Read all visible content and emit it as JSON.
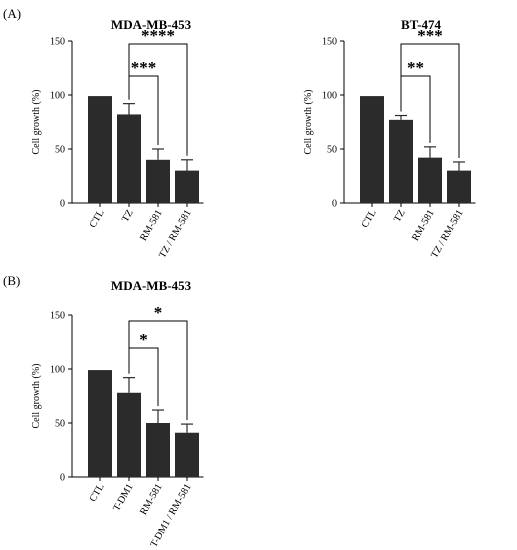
{
  "panels": [
    {
      "letter": "(A)"
    },
    {
      "letter": "(B)"
    }
  ],
  "chart_data": [
    {
      "type": "bar",
      "title": "MDA-MB-453",
      "ylabel": "Cell growth (%)",
      "xlabel": "",
      "ylim": [
        0,
        150
      ],
      "yticks": [
        "0",
        "50",
        "100",
        "150"
      ],
      "categories": [
        "CTL",
        "TZ",
        "RM-581",
        "TZ / RM-581"
      ],
      "values": [
        99,
        82,
        40,
        30
      ],
      "errors": [
        0,
        10,
        10,
        10
      ],
      "bar_color": "#2b2b2b",
      "significance": [
        {
          "from": "TZ",
          "to": "RM-581",
          "label": "***"
        },
        {
          "from": "TZ",
          "to": "TZ / RM-581",
          "label": "****"
        }
      ]
    },
    {
      "type": "bar",
      "title": "BT-474",
      "ylabel": "Cell growth (%)",
      "xlabel": "",
      "ylim": [
        0,
        150
      ],
      "yticks": [
        "0",
        "50",
        "100",
        "150"
      ],
      "categories": [
        "CTL",
        "TZ",
        "RM-581",
        "TZ / RM-581"
      ],
      "values": [
        99,
        77,
        42,
        30
      ],
      "errors": [
        0,
        4,
        10,
        8
      ],
      "bar_color": "#2b2b2b",
      "significance": [
        {
          "from": "TZ",
          "to": "RM-581",
          "label": "**"
        },
        {
          "from": "TZ",
          "to": "TZ / RM-581",
          "label": "***"
        }
      ]
    },
    {
      "type": "bar",
      "title": "MDA-MB-453",
      "ylabel": "Cell growth (%)",
      "xlabel": "",
      "ylim": [
        0,
        150
      ],
      "yticks": [
        "0",
        "50",
        "100",
        "150"
      ],
      "categories": [
        "CTL",
        "T-DM1",
        "RM-581",
        "T-DM1 / RM-581"
      ],
      "values": [
        99,
        78,
        50,
        41
      ],
      "errors": [
        0,
        14,
        12,
        8
      ],
      "bar_color": "#2b2b2b",
      "significance": [
        {
          "from": "T-DM1",
          "to": "RM-581",
          "label": "*"
        },
        {
          "from": "T-DM1",
          "to": "T-DM1 / RM-581",
          "label": "*"
        }
      ]
    }
  ]
}
